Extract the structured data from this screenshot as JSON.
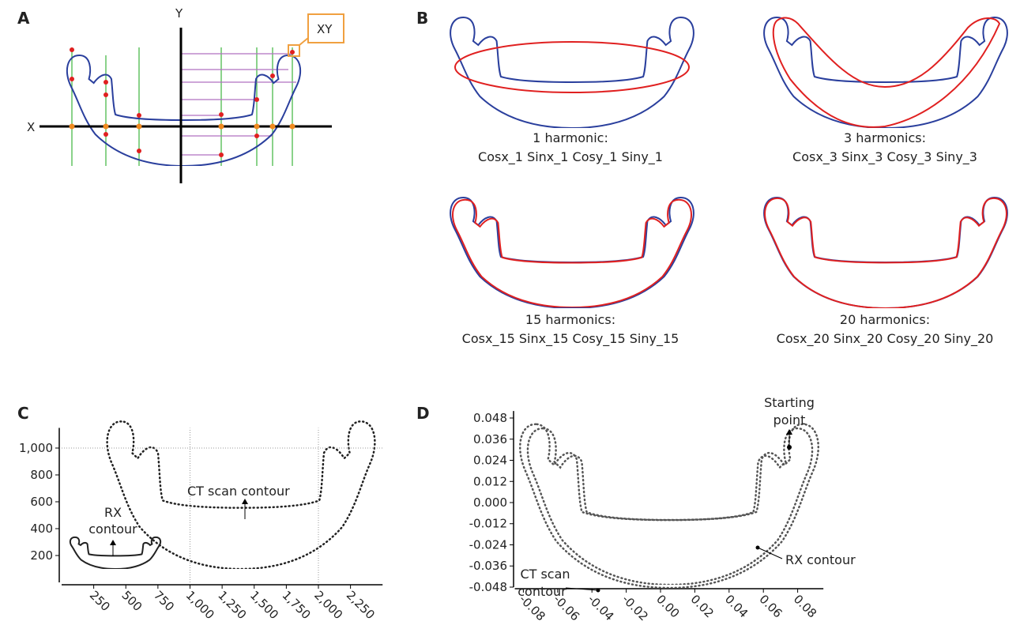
{
  "panels": {
    "a": {
      "label": "A",
      "x_axis": "X",
      "y_axis": "Y",
      "callout": "XY"
    },
    "b": {
      "label": "B",
      "items": [
        {
          "title": "1 harmonic:",
          "coefficients": "Cosx_1 Sinx_1 Cosy_1 Siny_1"
        },
        {
          "title": "3 harmonics:",
          "coefficients": "Cosx_3 Sinx_3 Cosy_3 Siny_3"
        },
        {
          "title": "15 harmonics:",
          "coefficients": "Cosx_15 Sinx_15 Cosy_15 Siny_15"
        },
        {
          "title": "20 harmonics:",
          "coefficients": "Cosx_20 Sinx_20 Cosy_20 Siny_20"
        }
      ]
    },
    "c": {
      "label": "C",
      "xlim": [
        0,
        2500
      ],
      "ylim": [
        0,
        1150
      ],
      "xticks": [
        250,
        500,
        750,
        {
          "value": 1000,
          "label": "1,000"
        },
        {
          "value": 1250,
          "label": "1,250"
        },
        {
          "value": 1500,
          "label": "1,500"
        },
        {
          "value": 1750,
          "label": "1,750"
        },
        {
          "value": 2000,
          "label": "2,000"
        },
        {
          "value": 2250,
          "label": "2,250"
        }
      ],
      "yticks": [
        200,
        400,
        600,
        800,
        {
          "value": 1000,
          "label": "1,000"
        }
      ],
      "xgrid": [
        1000,
        2000
      ],
      "ygrid": [
        1000
      ],
      "annotations": {
        "ct": "CT scan contour",
        "rx": [
          "RX",
          "contour"
        ]
      }
    },
    "d": {
      "label": "D",
      "xlim": [
        -0.085,
        0.095
      ],
      "ylim": [
        -0.048,
        0.052
      ],
      "xticks": [
        -0.08,
        -0.06,
        -0.04,
        -0.02,
        {
          "value": 0,
          "label": "0.00"
        },
        0.02,
        0.04,
        0.06,
        0.08
      ],
      "yticks": [
        0.048,
        0.036,
        0.024,
        0.012,
        {
          "value": 0,
          "label": "0.000"
        },
        -0.012,
        -0.024,
        -0.036,
        -0.048
      ],
      "annotations": {
        "start": [
          "Starting",
          "point"
        ],
        "ct": [
          "CT scan",
          "contour"
        ],
        "rx": "RX contour"
      }
    }
  }
}
